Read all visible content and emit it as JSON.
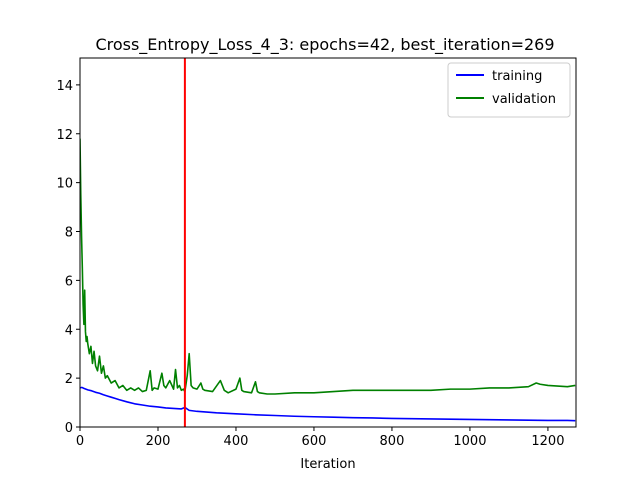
{
  "chart_data": {
    "type": "line",
    "title": "Cross_Entropy_Loss_4_3: epochs=42, best_iteration=269",
    "xlabel": "Iteration",
    "ylabel": "",
    "xlim": [
      0,
      1272
    ],
    "ylim": [
      0,
      15.1
    ],
    "x_ticks": [
      0,
      200,
      400,
      600,
      800,
      1000,
      1200
    ],
    "y_ticks": [
      0,
      2,
      4,
      6,
      8,
      10,
      12,
      14
    ],
    "grid": false,
    "legend_position": "top-right",
    "best_iteration": 269,
    "best_iteration_line_color": "#ff0000",
    "series": [
      {
        "name": "training",
        "color": "#0000ff",
        "x": [
          0,
          5,
          10,
          15,
          20,
          30,
          40,
          50,
          60,
          70,
          80,
          90,
          100,
          120,
          140,
          160,
          180,
          200,
          220,
          240,
          260,
          269,
          280,
          300,
          350,
          400,
          450,
          500,
          550,
          600,
          650,
          700,
          750,
          800,
          850,
          900,
          950,
          1000,
          1050,
          1100,
          1150,
          1200,
          1250,
          1270
        ],
        "y": [
          1.6,
          1.62,
          1.58,
          1.55,
          1.52,
          1.48,
          1.42,
          1.38,
          1.32,
          1.27,
          1.22,
          1.17,
          1.12,
          1.03,
          0.95,
          0.9,
          0.85,
          0.82,
          0.78,
          0.76,
          0.74,
          0.8,
          0.68,
          0.64,
          0.58,
          0.54,
          0.5,
          0.47,
          0.44,
          0.42,
          0.4,
          0.38,
          0.37,
          0.35,
          0.34,
          0.33,
          0.32,
          0.31,
          0.3,
          0.29,
          0.28,
          0.27,
          0.27,
          0.26
        ]
      },
      {
        "name": "validation",
        "color": "#008000",
        "x": [
          0,
          2,
          4,
          6,
          8,
          10,
          12,
          14,
          16,
          18,
          20,
          24,
          28,
          32,
          36,
          40,
          45,
          50,
          55,
          60,
          65,
          70,
          80,
          90,
          100,
          110,
          120,
          130,
          140,
          150,
          160,
          170,
          180,
          185,
          190,
          200,
          210,
          215,
          220,
          230,
          240,
          245,
          250,
          255,
          260,
          265,
          269,
          275,
          280,
          285,
          290,
          300,
          310,
          315,
          320,
          340,
          360,
          370,
          375,
          380,
          400,
          410,
          415,
          420,
          440,
          450,
          455,
          460,
          480,
          500,
          550,
          600,
          650,
          700,
          750,
          800,
          850,
          900,
          950,
          1000,
          1050,
          1100,
          1150,
          1170,
          1180,
          1200,
          1220,
          1250,
          1270
        ],
        "y": [
          11.8,
          9.5,
          7.8,
          6.5,
          5.0,
          4.2,
          5.6,
          3.9,
          3.5,
          3.7,
          3.4,
          3.0,
          3.3,
          2.6,
          3.1,
          2.5,
          2.3,
          2.9,
          2.2,
          2.5,
          2.0,
          2.1,
          1.8,
          1.9,
          1.6,
          1.7,
          1.5,
          1.6,
          1.5,
          1.6,
          1.45,
          1.5,
          2.3,
          1.5,
          1.6,
          1.55,
          2.2,
          1.7,
          1.6,
          1.9,
          1.55,
          2.35,
          1.6,
          1.7,
          1.5,
          1.55,
          1.45,
          2.1,
          3.0,
          1.7,
          1.6,
          1.55,
          1.8,
          1.55,
          1.5,
          1.45,
          1.9,
          1.5,
          1.45,
          1.4,
          1.55,
          2.0,
          1.5,
          1.45,
          1.4,
          1.85,
          1.45,
          1.4,
          1.35,
          1.35,
          1.4,
          1.4,
          1.45,
          1.5,
          1.5,
          1.5,
          1.5,
          1.5,
          1.55,
          1.55,
          1.6,
          1.6,
          1.65,
          1.8,
          1.75,
          1.7,
          1.68,
          1.65,
          1.7
        ]
      }
    ]
  }
}
